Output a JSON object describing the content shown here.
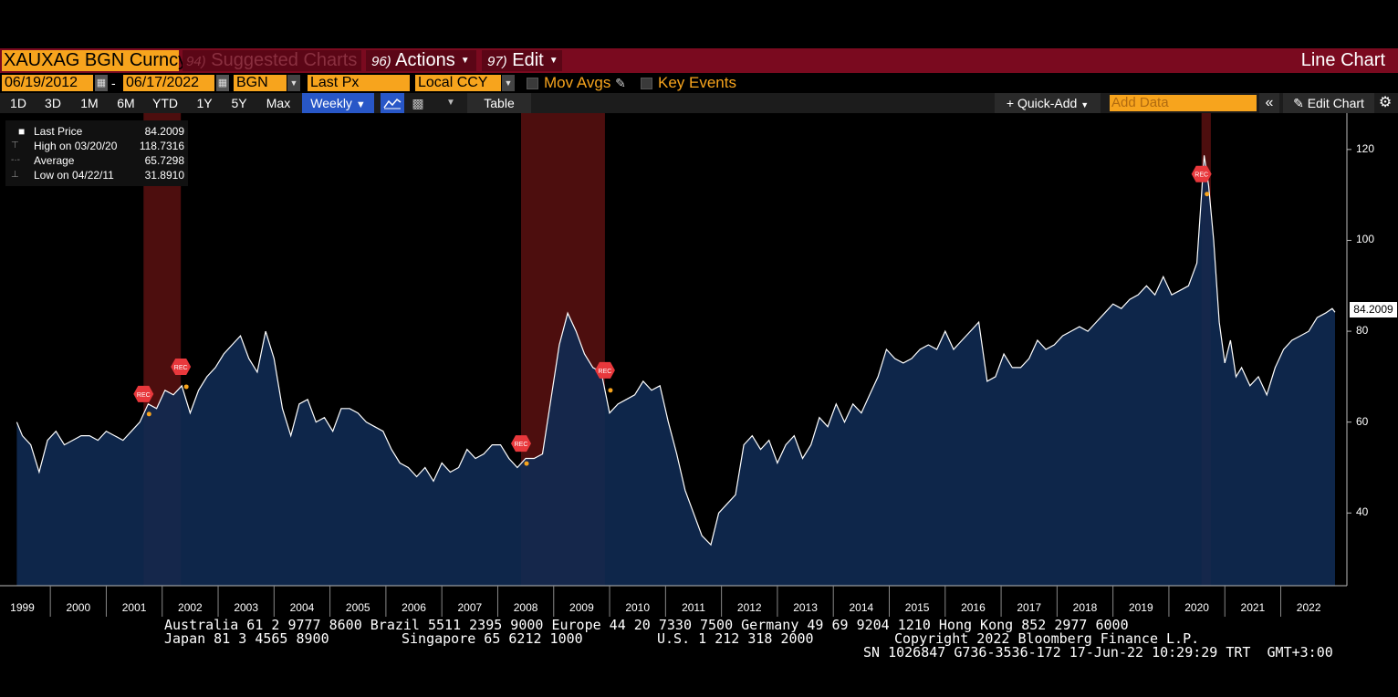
{
  "header": {
    "ticker": "XAUXAG BGN Curncy",
    "suggested_num": "94)",
    "suggested_label": "Suggested Charts",
    "actions_num": "96)",
    "actions_label": "Actions",
    "edit_num": "97)",
    "edit_label": "Edit",
    "chart_type": "Line Chart"
  },
  "controls": {
    "start_date": "06/19/2012",
    "separator": "-",
    "end_date": "06/17/2022",
    "source": "BGN",
    "field": "Last Px",
    "currency": "Local CCY",
    "mov_avgs": "Mov Avgs",
    "key_events": "Key Events"
  },
  "toolbar": {
    "periods": [
      "1D",
      "3D",
      "1M",
      "6M",
      "YTD",
      "1Y",
      "5Y",
      "Max"
    ],
    "frequency": "Weekly",
    "table": "Table",
    "quick_add": "+ Quick-Add",
    "add_data_placeholder": "Add Data",
    "edit_chart": "Edit Chart"
  },
  "legend": {
    "last_label": "Last Price",
    "last_value": "84.2009",
    "high_label": "High on 03/20/20",
    "high_value": "118.7316",
    "avg_label": "Average",
    "avg_value": "65.7298",
    "low_label": "Low on 04/22/11",
    "low_value": "31.8910"
  },
  "last_badge": "84.2009",
  "rec_label": "REC",
  "colors": {
    "title_bar": "#7a0a1f",
    "orange": "#f7a41d",
    "area_fill": "#0f2a52",
    "recession": "#5a1010"
  },
  "chart_data": {
    "type": "area",
    "title": "",
    "xlabel": "",
    "ylabel": "",
    "ylim": [
      24,
      128
    ],
    "yticks": [
      40,
      60,
      80,
      100,
      120
    ],
    "years": [
      "1999",
      "2000",
      "2001",
      "2002",
      "2003",
      "2004",
      "2005",
      "2006",
      "2007",
      "2008",
      "2009",
      "2010",
      "2011",
      "2012",
      "2013",
      "2014",
      "2015",
      "2016",
      "2017",
      "2018",
      "2019",
      "2020",
      "2021",
      "2022"
    ],
    "recessions": [
      {
        "start": "2001-03",
        "end": "2001-11"
      },
      {
        "start": "2007-12",
        "end": "2009-06"
      },
      {
        "start": "2020-02",
        "end": "2020-04"
      }
    ],
    "series": [
      {
        "x": [
          1998.9,
          1999.0,
          1999.15,
          1999.3,
          1999.45,
          1999.6,
          1999.75,
          1999.9,
          2000.05,
          2000.2,
          2000.35,
          2000.5,
          2000.65,
          2000.8,
          2000.95,
          2001.1,
          2001.25,
          2001.4,
          2001.55,
          2001.7,
          2001.85,
          2002.0,
          2002.15,
          2002.3,
          2002.45,
          2002.6,
          2002.75,
          2002.9,
          2003.05,
          2003.2,
          2003.35,
          2003.5,
          2003.65,
          2003.8,
          2003.95,
          2004.1,
          2004.25,
          2004.4,
          2004.55,
          2004.7,
          2004.85,
          2005.0,
          2005.15,
          2005.3,
          2005.45,
          2005.6,
          2005.75,
          2005.9,
          2006.05,
          2006.2,
          2006.35,
          2006.5,
          2006.65,
          2006.8,
          2006.95,
          2007.1,
          2007.25,
          2007.4,
          2007.55,
          2007.7,
          2007.85,
          2008.0,
          2008.15,
          2008.3,
          2008.45,
          2008.6,
          2008.75,
          2008.9,
          2009.05,
          2009.2,
          2009.35,
          2009.5,
          2009.65,
          2009.8,
          2009.95,
          2010.1,
          2010.25,
          2010.4,
          2010.55,
          2010.7,
          2010.85,
          2011.0,
          2011.15,
          2011.31,
          2011.45,
          2011.6,
          2011.75,
          2011.9,
          2012.05,
          2012.2,
          2012.35,
          2012.5,
          2012.65,
          2012.8,
          2012.95,
          2013.1,
          2013.25,
          2013.4,
          2013.55,
          2013.7,
          2013.85,
          2014.0,
          2014.15,
          2014.3,
          2014.45,
          2014.6,
          2014.75,
          2014.9,
          2015.05,
          2015.2,
          2015.35,
          2015.5,
          2015.65,
          2015.8,
          2015.95,
          2016.1,
          2016.25,
          2016.4,
          2016.55,
          2016.7,
          2016.85,
          2017.0,
          2017.15,
          2017.3,
          2017.45,
          2017.6,
          2017.75,
          2017.9,
          2018.05,
          2018.2,
          2018.35,
          2018.5,
          2018.65,
          2018.8,
          2018.95,
          2019.1,
          2019.25,
          2019.4,
          2019.55,
          2019.7,
          2019.85,
          2020.0,
          2020.13,
          2020.21,
          2020.3,
          2020.4,
          2020.5,
          2020.6,
          2020.7,
          2020.8,
          2020.95,
          2021.1,
          2021.25,
          2021.4,
          2021.55,
          2021.7,
          2021.85,
          2022.0,
          2022.15,
          2022.3,
          2022.42,
          2022.47
        ],
        "y": [
          60,
          57,
          55,
          49,
          56,
          58,
          55,
          56,
          57,
          57,
          56,
          58,
          57,
          56,
          58,
          60,
          64,
          63,
          67,
          66,
          68,
          62,
          67,
          70,
          72,
          75,
          77,
          79,
          74,
          71,
          80,
          74,
          63,
          57,
          64,
          65,
          60,
          61,
          58,
          63,
          63,
          62,
          60,
          59,
          58,
          54,
          51,
          50,
          48,
          50,
          47,
          51,
          49,
          50,
          54,
          52,
          53,
          55,
          55,
          52,
          50,
          52,
          52,
          53,
          65,
          77,
          84,
          80,
          75,
          72,
          71,
          62,
          64,
          65,
          66,
          69,
          67,
          68,
          60,
          53,
          45,
          40,
          35,
          33,
          40,
          42,
          44,
          55,
          57,
          54,
          56,
          51,
          55,
          57,
          52,
          55,
          61,
          59,
          64,
          60,
          64,
          62,
          66,
          70,
          76,
          74,
          73,
          74,
          76,
          77,
          76,
          80,
          76,
          78,
          80,
          82,
          69,
          70,
          75,
          72,
          72,
          74,
          78,
          76,
          77,
          79,
          80,
          81,
          80,
          82,
          84,
          86,
          85,
          87,
          88,
          90,
          88,
          92,
          88,
          89,
          90,
          95,
          118.7,
          112,
          100,
          82,
          73,
          78,
          70,
          72,
          68,
          70,
          66,
          72,
          76,
          78,
          79,
          80,
          83,
          84,
          85,
          84.2
        ]
      }
    ]
  },
  "footer": {
    "line1": "Australia 61 2 9777 8600 Brazil 5511 2395 9000 Europe 44 20 7330 7500 Germany 49 69 9204 1210 Hong Kong 852 2977 6000",
    "line2a": "Japan 81 3 4565 8900",
    "line2b": "Singapore 65 6212 1000",
    "line2c": "U.S. 1 212 318 2000",
    "line2d": "Copyright 2022 Bloomberg Finance L.P.",
    "line3": "SN 1026847 G736-3536-172 17-Jun-22 10:29:29 TRT  GMT+3:00"
  }
}
